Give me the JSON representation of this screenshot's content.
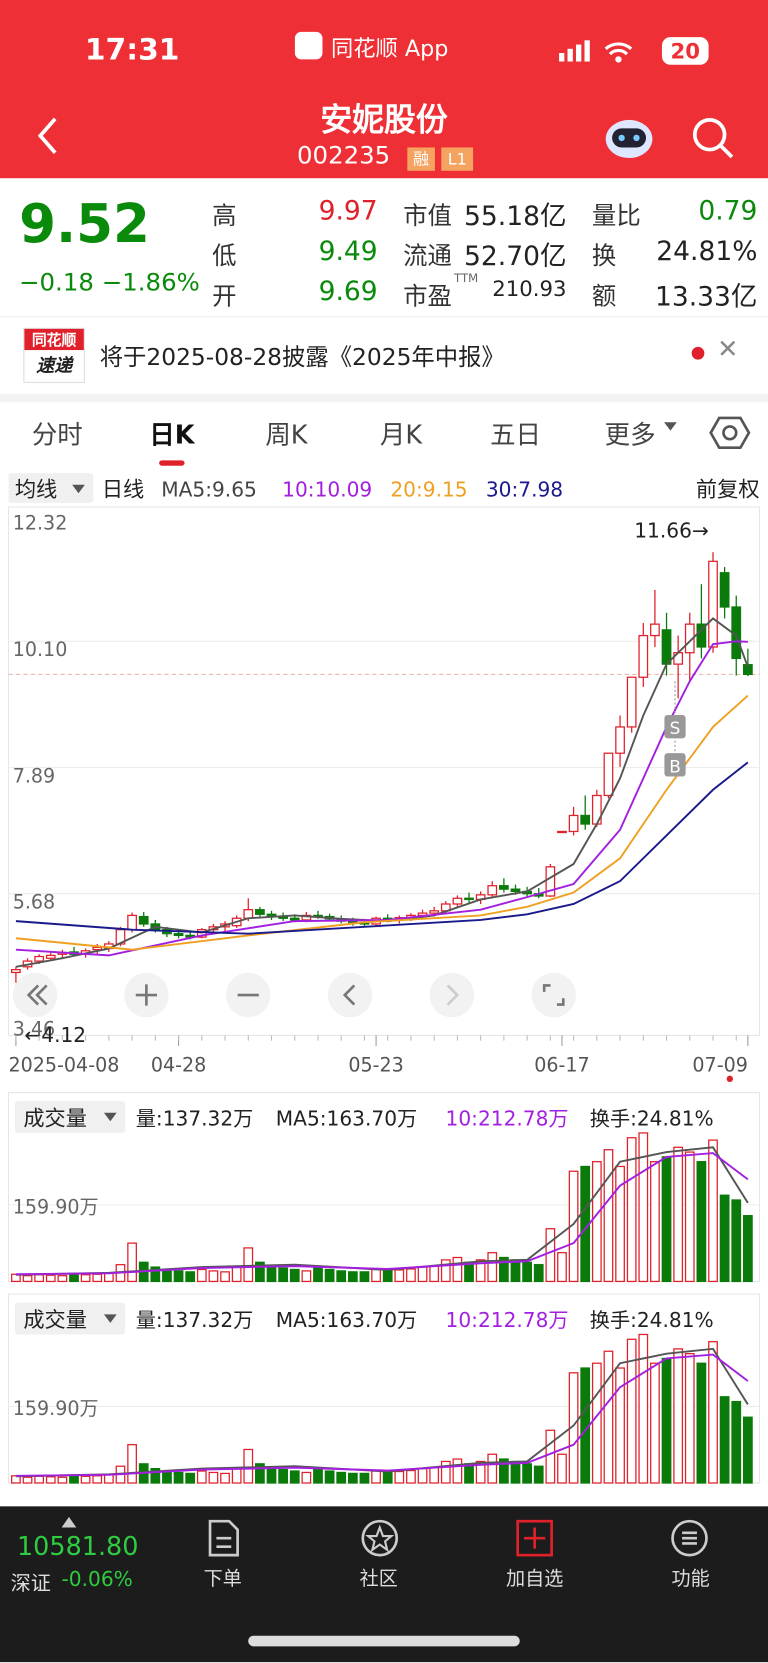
{
  "status_bar": {
    "time": "17:31",
    "app": "同花顺 App",
    "battery": "20"
  },
  "header": {
    "name": "安妮股份",
    "code": "002235",
    "tags": [
      "融",
      "L1"
    ]
  },
  "quote": {
    "price": "9.52",
    "change": "−0.18",
    "change_pct": "−1.86%",
    "stats": [
      {
        "label": "高",
        "value": "9.97",
        "color": "#e0212b"
      },
      {
        "label": "低",
        "value": "9.49",
        "color": "#0a8a0a"
      },
      {
        "label": "开",
        "value": "9.69",
        "color": "#0a8a0a"
      },
      {
        "label": "市值",
        "value": "55.18亿",
        "color": "#222222"
      },
      {
        "label": "流通",
        "value": "52.70亿",
        "color": "#222222"
      },
      {
        "label": "市盈",
        "sup": "TTM",
        "value": "210.93",
        "color": "#222222"
      },
      {
        "label": "量比",
        "value": "0.79",
        "color": "#0a8a0a"
      },
      {
        "label": "换",
        "value": "24.81%",
        "color": "#222222"
      },
      {
        "label": "额",
        "value": "13.33亿",
        "color": "#222222"
      }
    ]
  },
  "notice": {
    "badge": [
      "同花顺",
      "速递"
    ],
    "text": "将于2025-08-28披露《2025年中报》"
  },
  "tabs": {
    "items": [
      "分时",
      "日K",
      "周K",
      "月K",
      "五日",
      "更多"
    ],
    "active": 1
  },
  "kline": {
    "selector": "均线",
    "period": "日线",
    "adjust": "前复权",
    "ma_labels": [
      {
        "text": "MA5:9.65",
        "color": "#444444"
      },
      {
        "text": "10:10.09",
        "color": "#a21fe0"
      },
      {
        "text": "20:9.15",
        "color": "#f0a020"
      },
      {
        "text": "30:7.98",
        "color": "#1a1a8c"
      }
    ],
    "ylim": [
      3.46,
      12.32
    ],
    "yticks": [
      12.32,
      10.1,
      7.89,
      5.68,
      3.46
    ],
    "ytick_labels": [
      "12.32",
      "10.10",
      "7.89",
      "5.68",
      "3.46"
    ],
    "high_label": "11.66→",
    "low_label": "←4.12",
    "last_price": 9.52,
    "markers": [
      "S",
      "B"
    ],
    "date_labels": [
      {
        "index": 0,
        "label": "2025-04-08"
      },
      {
        "index": 14,
        "label": "04-28"
      },
      {
        "index": 31,
        "label": "05-23"
      },
      {
        "index": 47,
        "label": "06-17"
      },
      {
        "index": 63,
        "label": "07-09"
      }
    ],
    "up_color": "#e0212b",
    "down_color": "#0a7a0a",
    "candles": [
      [
        4.3,
        4.4,
        4.12,
        4.35
      ],
      [
        4.4,
        4.55,
        4.35,
        4.5
      ],
      [
        4.5,
        4.62,
        4.45,
        4.58
      ],
      [
        4.55,
        4.66,
        4.5,
        4.6
      ],
      [
        4.62,
        4.7,
        4.55,
        4.65
      ],
      [
        4.66,
        4.75,
        4.58,
        4.62
      ],
      [
        4.62,
        4.72,
        4.56,
        4.68
      ],
      [
        4.7,
        4.8,
        4.62,
        4.74
      ],
      [
        4.72,
        4.85,
        4.66,
        4.8
      ],
      [
        4.8,
        5.1,
        4.76,
        5.05
      ],
      [
        5.05,
        5.35,
        5.0,
        5.3
      ],
      [
        5.28,
        5.36,
        5.1,
        5.15
      ],
      [
        5.15,
        5.22,
        5.0,
        5.05
      ],
      [
        5.05,
        5.1,
        4.92,
        4.98
      ],
      [
        4.98,
        5.05,
        4.9,
        4.95
      ],
      [
        4.95,
        5.02,
        4.88,
        4.92
      ],
      [
        4.92,
        5.08,
        4.9,
        5.05
      ],
      [
        5.05,
        5.15,
        5.0,
        5.1
      ],
      [
        5.1,
        5.2,
        5.02,
        5.15
      ],
      [
        5.12,
        5.3,
        5.08,
        5.25
      ],
      [
        5.25,
        5.6,
        5.2,
        5.4
      ],
      [
        5.4,
        5.45,
        5.28,
        5.32
      ],
      [
        5.32,
        5.38,
        5.22,
        5.28
      ],
      [
        5.28,
        5.35,
        5.2,
        5.25
      ],
      [
        5.25,
        5.32,
        5.18,
        5.22
      ],
      [
        5.22,
        5.36,
        5.18,
        5.3
      ],
      [
        5.3,
        5.38,
        5.24,
        5.28
      ],
      [
        5.28,
        5.33,
        5.2,
        5.24
      ],
      [
        5.24,
        5.3,
        5.16,
        5.2
      ],
      [
        5.2,
        5.26,
        5.12,
        5.18
      ],
      [
        5.18,
        5.24,
        5.1,
        5.15
      ],
      [
        5.15,
        5.28,
        5.12,
        5.25
      ],
      [
        5.25,
        5.32,
        5.18,
        5.22
      ],
      [
        5.22,
        5.3,
        5.16,
        5.26
      ],
      [
        5.26,
        5.34,
        5.2,
        5.3
      ],
      [
        5.3,
        5.4,
        5.24,
        5.34
      ],
      [
        5.34,
        5.45,
        5.28,
        5.38
      ],
      [
        5.38,
        5.55,
        5.34,
        5.5
      ],
      [
        5.5,
        5.65,
        5.45,
        5.6
      ],
      [
        5.6,
        5.7,
        5.52,
        5.58
      ],
      [
        5.58,
        5.72,
        5.5,
        5.66
      ],
      [
        5.66,
        5.9,
        5.6,
        5.82
      ],
      [
        5.82,
        5.95,
        5.7,
        5.76
      ],
      [
        5.76,
        5.84,
        5.66,
        5.72
      ],
      [
        5.72,
        5.8,
        5.62,
        5.68
      ],
      [
        5.68,
        5.78,
        5.6,
        5.64
      ],
      [
        5.64,
        6.2,
        5.62,
        6.15
      ],
      [
        6.77,
        6.77,
        6.77,
        6.77
      ],
      [
        6.77,
        7.2,
        6.7,
        7.05
      ],
      [
        7.05,
        7.4,
        6.8,
        6.9
      ],
      [
        6.9,
        7.5,
        6.85,
        7.4
      ],
      [
        7.4,
        8.14,
        7.35,
        8.14
      ],
      [
        8.14,
        8.8,
        7.9,
        8.6
      ],
      [
        8.6,
        9.47,
        8.5,
        9.47
      ],
      [
        9.47,
        10.42,
        9.3,
        10.2
      ],
      [
        10.2,
        11.0,
        10.0,
        10.4
      ],
      [
        10.3,
        10.6,
        9.5,
        9.7
      ],
      [
        9.7,
        10.2,
        9.1,
        9.9
      ],
      [
        9.9,
        10.6,
        9.4,
        10.4
      ],
      [
        10.4,
        11.1,
        9.8,
        10.0
      ],
      [
        10.0,
        11.66,
        9.9,
        11.5
      ],
      [
        11.3,
        11.4,
        10.5,
        10.7
      ],
      [
        10.7,
        10.9,
        9.5,
        9.8
      ],
      [
        9.69,
        9.97,
        9.49,
        9.52
      ]
    ],
    "ma_lines": [
      {
        "color": "#555555",
        "x": [
          0,
          4,
          8,
          12,
          16,
          20,
          24,
          28,
          32,
          36,
          40,
          44,
          48,
          50,
          52,
          54,
          56,
          58,
          60,
          62,
          63
        ],
        "values": [
          4.4,
          4.55,
          4.72,
          5.1,
          5.0,
          5.25,
          5.3,
          5.24,
          5.2,
          5.3,
          5.58,
          5.72,
          6.2,
          6.9,
          7.7,
          8.8,
          9.7,
          10.1,
          10.5,
          10.2,
          9.65
        ]
      },
      {
        "color": "#a21fe0",
        "x": [
          0,
          8,
          16,
          24,
          32,
          40,
          44,
          48,
          52,
          56,
          58,
          60,
          62,
          63
        ],
        "values": [
          4.7,
          4.6,
          4.95,
          5.2,
          5.22,
          5.4,
          5.62,
          5.85,
          6.8,
          8.6,
          9.4,
          10.05,
          10.1,
          10.09
        ]
      },
      {
        "color": "#f0a020",
        "x": [
          0,
          10,
          20,
          30,
          40,
          44,
          48,
          52,
          56,
          60,
          63
        ],
        "values": [
          4.9,
          4.7,
          4.95,
          5.18,
          5.3,
          5.45,
          5.7,
          6.3,
          7.5,
          8.6,
          9.15
        ]
      },
      {
        "color": "#1a1a8c",
        "x": [
          0,
          10,
          20,
          30,
          40,
          44,
          48,
          52,
          56,
          60,
          63
        ],
        "values": [
          5.2,
          5.05,
          4.98,
          5.1,
          5.22,
          5.32,
          5.5,
          5.9,
          6.7,
          7.5,
          7.98
        ]
      }
    ]
  },
  "volume": {
    "title": "成交量",
    "vol": "量:137.32万",
    "ma5": "MA5:163.70万",
    "ma10": "10:212.78万",
    "turnover": "换手:24.81%",
    "ylim": [
      0,
      310
    ],
    "yticks": [
      {
        "value": 159.9,
        "label": "159.90万"
      }
    ],
    "values": [
      15,
      12,
      14,
      13,
      12,
      16,
      14,
      15,
      18,
      35,
      80,
      40,
      30,
      25,
      22,
      20,
      25,
      22,
      20,
      30,
      70,
      40,
      30,
      28,
      25,
      22,
      30,
      25,
      22,
      20,
      20,
      25,
      22,
      24,
      26,
      30,
      32,
      45,
      50,
      40,
      45,
      60,
      50,
      45,
      40,
      35,
      110,
      60,
      230,
      240,
      250,
      275,
      240,
      300,
      310,
      250,
      260,
      280,
      270,
      250,
      295,
      180,
      170,
      137.32
    ],
    "ma_lines": [
      {
        "color": "#555555",
        "x": [
          0,
          8,
          16,
          24,
          32,
          40,
          44,
          48,
          52,
          56,
          60,
          63
        ],
        "values": [
          14,
          18,
          30,
          35,
          24,
          42,
          45,
          120,
          250,
          270,
          280,
          164
        ]
      },
      {
        "color": "#a21fe0",
        "x": [
          0,
          8,
          16,
          24,
          32,
          40,
          44,
          48,
          52,
          56,
          60,
          63
        ],
        "values": [
          15,
          17,
          28,
          32,
          26,
          38,
          42,
          80,
          200,
          260,
          268,
          213
        ]
      }
    ]
  },
  "bottom": {
    "index_value": "10581.80",
    "index_name": "深证",
    "index_change": "-0.06%",
    "nav": [
      "下单",
      "社区",
      "加自选",
      "功能"
    ]
  }
}
